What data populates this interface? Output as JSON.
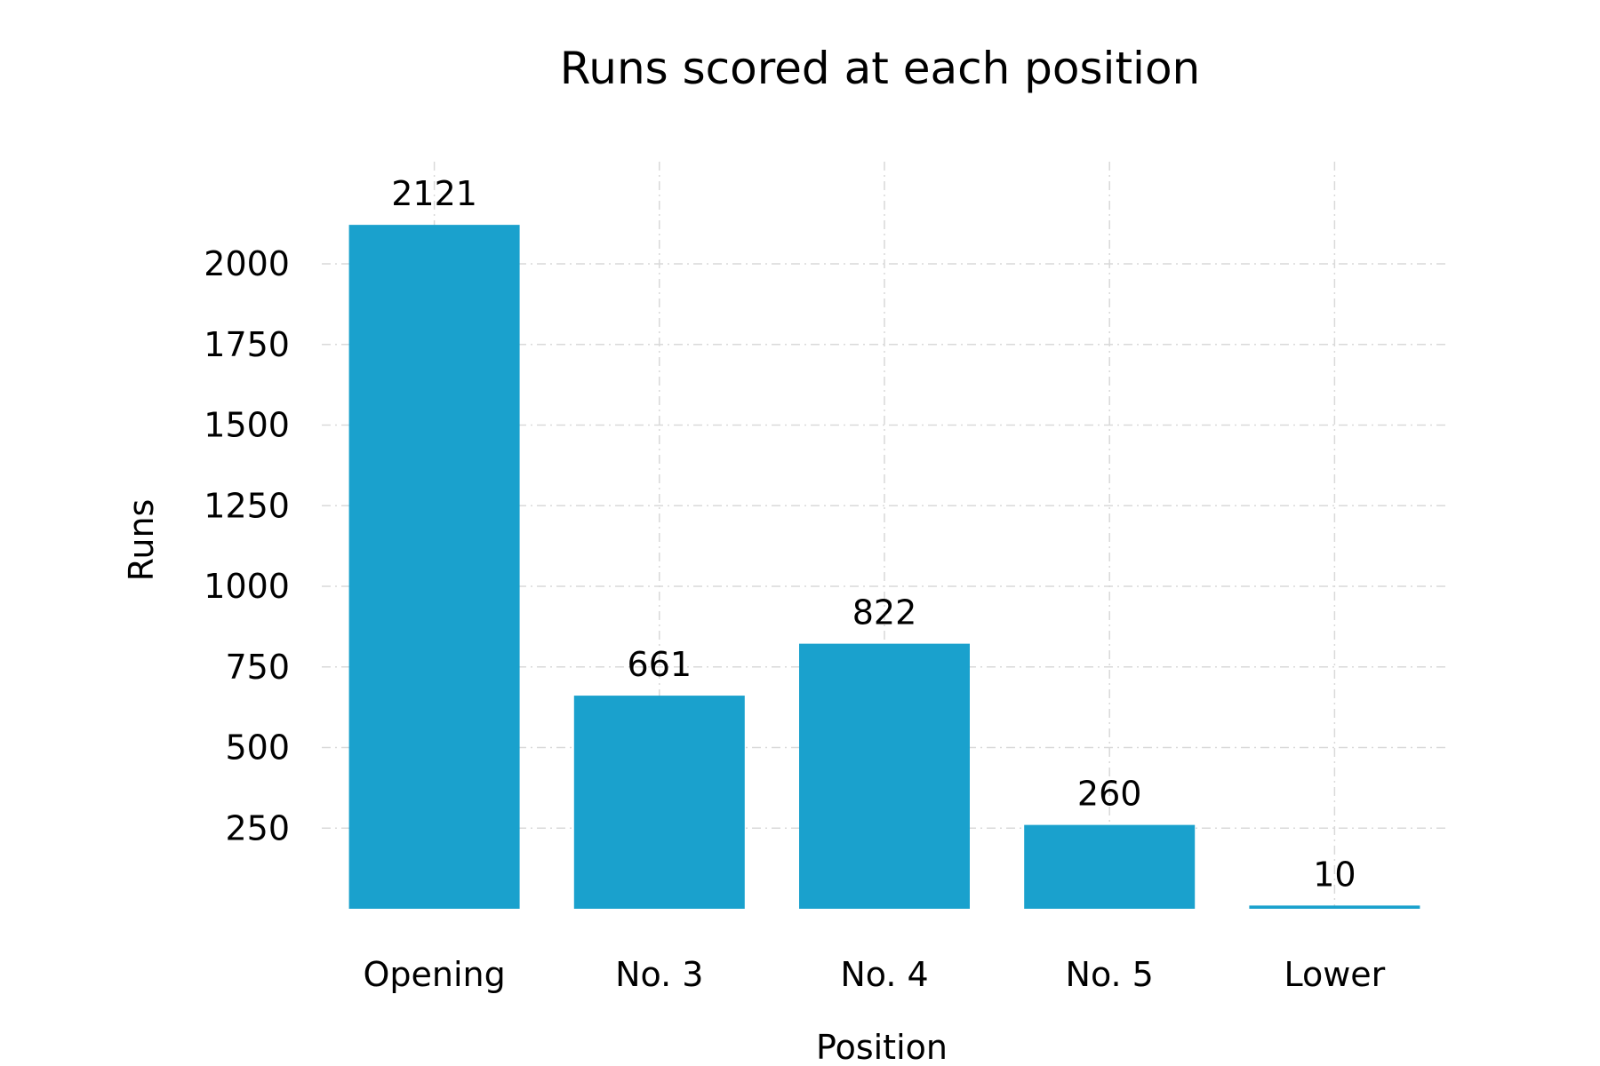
{
  "chart_data": {
    "type": "bar",
    "title": "Runs scored at each position",
    "xlabel": "Position",
    "ylabel": "Runs",
    "categories": [
      "Opening",
      "No. 3",
      "No. 4",
      "No. 5",
      "Lower"
    ],
    "values": [
      2121,
      661,
      822,
      260,
      10
    ],
    "data_labels": [
      "2121",
      "661",
      "822",
      "260",
      "10"
    ],
    "yticks": [
      250,
      500,
      750,
      1000,
      1250,
      1500,
      1750,
      2000
    ],
    "ytick_labels": [
      "250",
      "500",
      "750",
      "1000",
      "1250",
      "1500",
      "1750",
      "2000"
    ],
    "ylim": [
      0,
      2350
    ],
    "grid": true,
    "bar_color": "#1aa1cd",
    "grid_color": "#d9d9d9"
  }
}
